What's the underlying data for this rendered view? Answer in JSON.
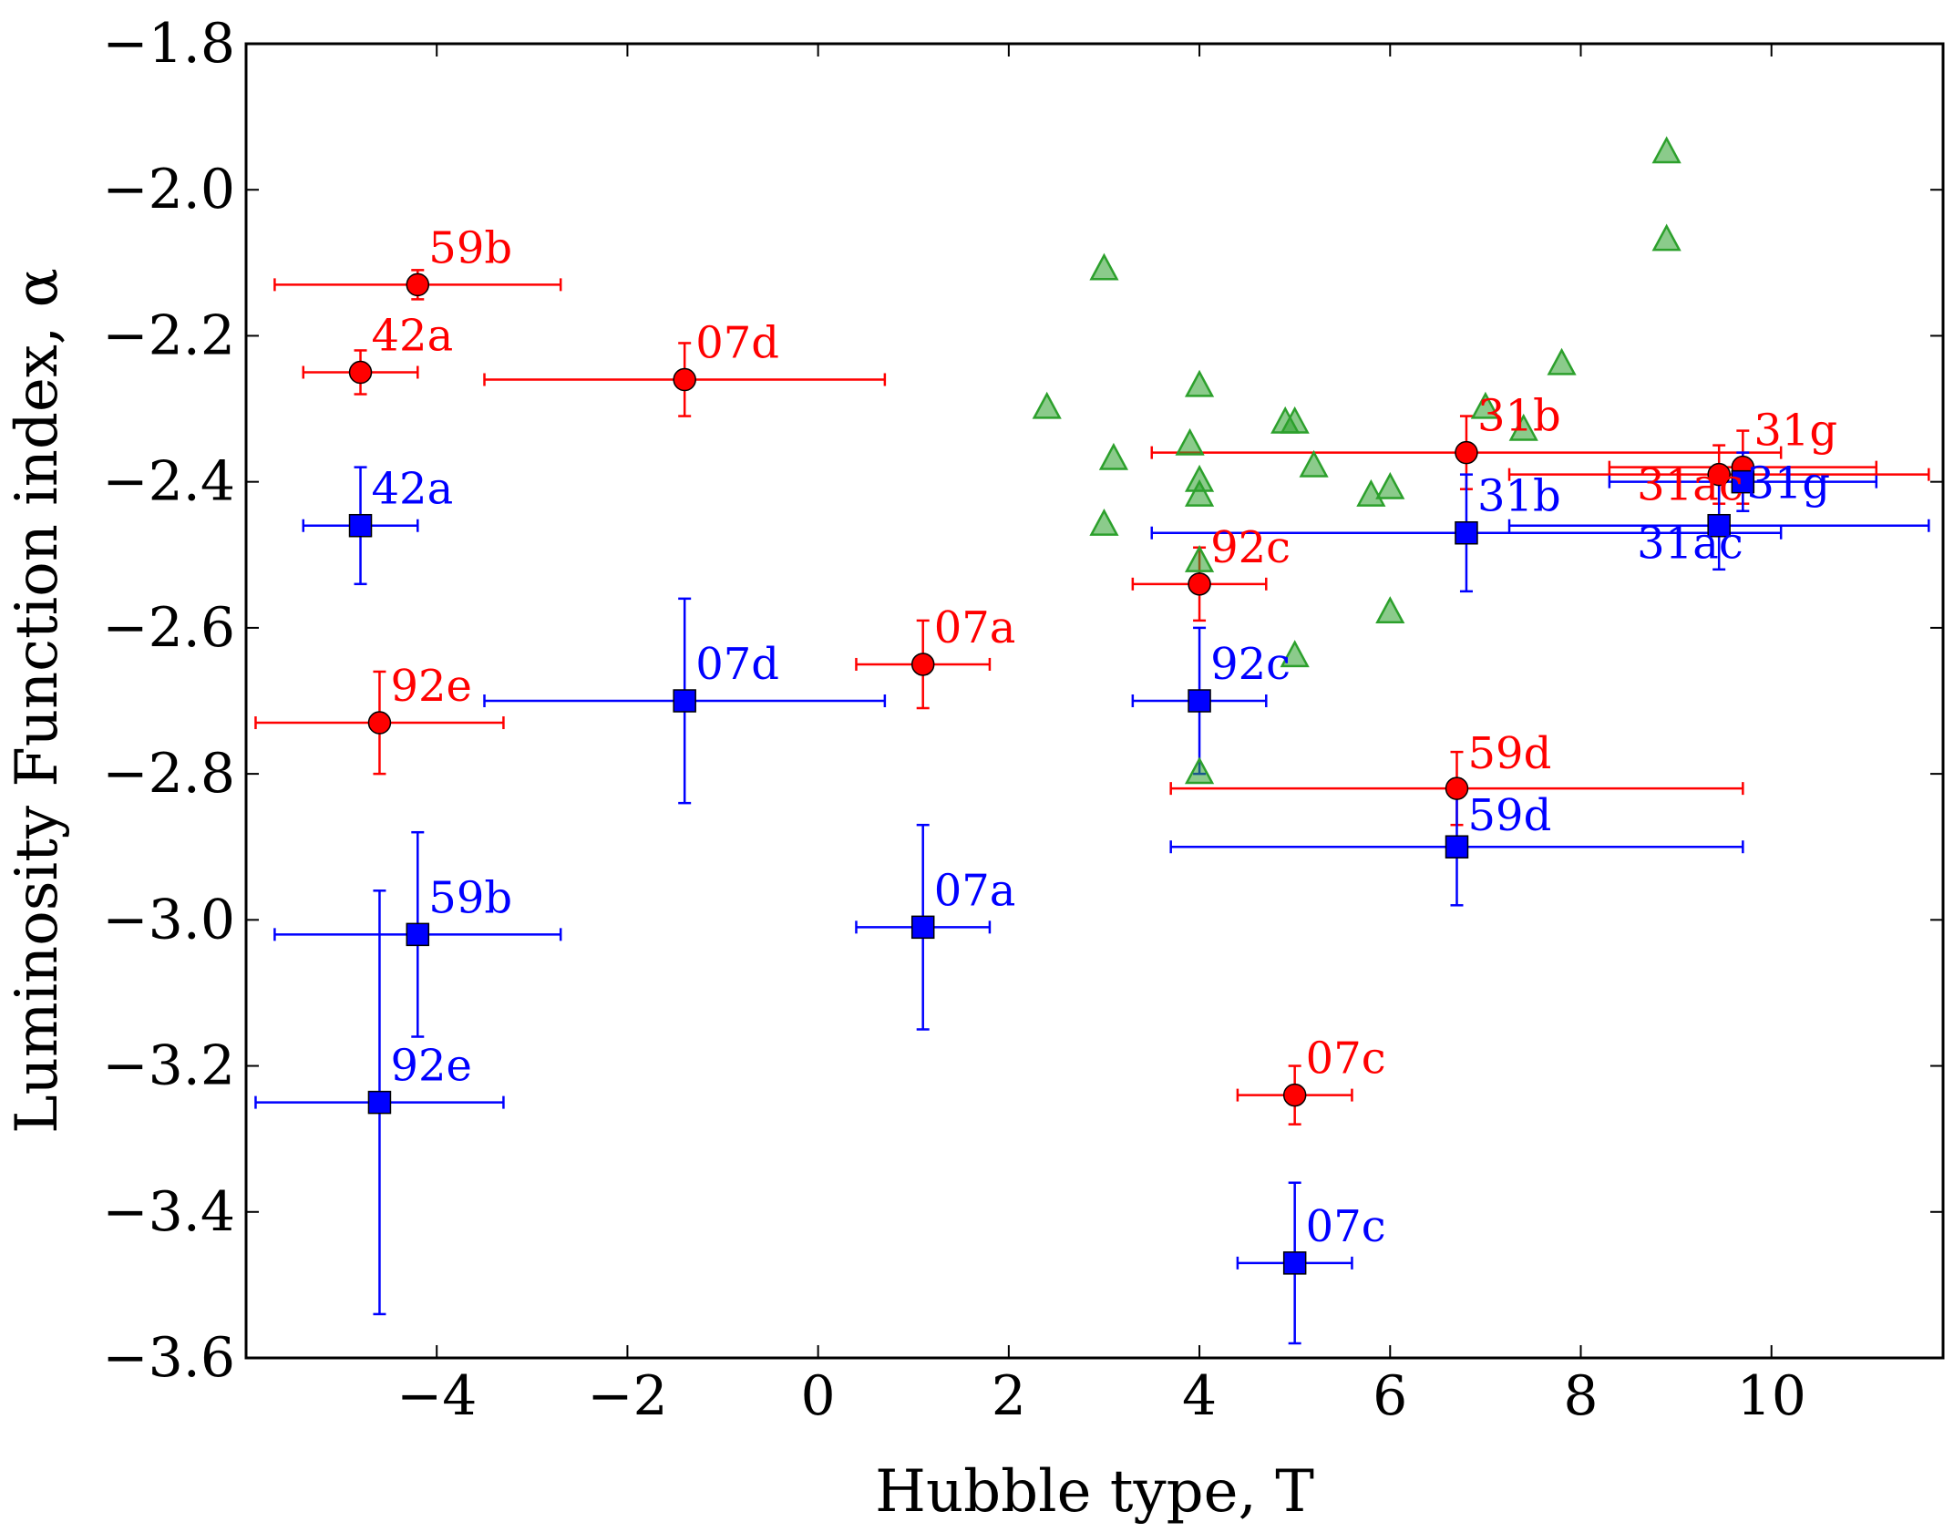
{
  "chart_data": {
    "type": "scatter",
    "title": "",
    "xlabel": "Hubble type, T",
    "ylabel": "Luminosity Function index, α",
    "xlim": [
      -6,
      11.8
    ],
    "ylim": [
      -3.6,
      -1.8
    ],
    "xticks": [
      -4,
      -2,
      0,
      2,
      4,
      6,
      8,
      10
    ],
    "yticks": [
      -1.8,
      -2.0,
      -2.2,
      -2.4,
      -2.6,
      -2.8,
      -3.0,
      -3.2,
      -3.4,
      -3.6
    ],
    "xtick_labels": [
      "−4",
      "−2",
      "0",
      "2",
      "4",
      "6",
      "8",
      "10"
    ],
    "ytick_labels": [
      "−1.8",
      "−2.0",
      "−2.2",
      "−2.4",
      "−2.6",
      "−2.8",
      "−3.0",
      "−3.2",
      "−3.4",
      "−3.6"
    ],
    "colors": {
      "red": "#ff0000",
      "blue": "#0000ff",
      "green": "#2ca02c"
    },
    "series": [
      {
        "name": "red-circles",
        "marker": "circle",
        "color": "#ff0000",
        "points": [
          {
            "label": "59b",
            "x": -4.2,
            "y": -2.13,
            "xerr": [
              1.5,
              1.5
            ],
            "yerr": [
              0.02,
              0.02
            ]
          },
          {
            "label": "42a",
            "x": -4.8,
            "y": -2.25,
            "xerr": [
              0.6,
              0.6
            ],
            "yerr": [
              0.03,
              0.03
            ]
          },
          {
            "label": "07d",
            "x": -1.4,
            "y": -2.26,
            "xerr": [
              2.1,
              2.1
            ],
            "yerr": [
              0.05,
              0.05
            ]
          },
          {
            "label": "92e",
            "x": -4.6,
            "y": -2.73,
            "xerr": [
              1.3,
              1.3
            ],
            "yerr": [
              0.07,
              0.07
            ]
          },
          {
            "label": "07a",
            "x": 1.1,
            "y": -2.65,
            "xerr": [
              0.7,
              0.7
            ],
            "yerr": [
              0.06,
              0.06
            ]
          },
          {
            "label": "92c",
            "x": 4.0,
            "y": -2.54,
            "xerr": [
              0.7,
              0.7
            ],
            "yerr": [
              0.05,
              0.05
            ]
          },
          {
            "label": "31b",
            "x": 6.8,
            "y": -2.36,
            "xerr": [
              3.3,
              3.3
            ],
            "yerr": [
              0.05,
              0.05
            ]
          },
          {
            "label": "31ac",
            "x": 9.45,
            "y": -2.39,
            "xerr": [
              2.2,
              2.2
            ],
            "yerr": [
              0.04,
              0.04
            ]
          },
          {
            "label": "31g",
            "x": 9.7,
            "y": -2.38,
            "xerr": [
              1.4,
              1.4
            ],
            "yerr": [
              0.05,
              0.05
            ]
          },
          {
            "label": "59d",
            "x": 6.7,
            "y": -2.82,
            "xerr": [
              3.0,
              3.0
            ],
            "yerr": [
              0.05,
              0.05
            ]
          },
          {
            "label": "07c",
            "x": 5.0,
            "y": -3.24,
            "xerr": [
              0.6,
              0.6
            ],
            "yerr": [
              0.04,
              0.04
            ]
          }
        ]
      },
      {
        "name": "blue-squares",
        "marker": "square",
        "color": "#0000ff",
        "points": [
          {
            "label": "42a",
            "x": -4.8,
            "y": -2.46,
            "xerr": [
              0.6,
              0.6
            ],
            "yerr": [
              0.08,
              0.08
            ]
          },
          {
            "label": "07d",
            "x": -1.4,
            "y": -2.7,
            "xerr": [
              2.1,
              2.1
            ],
            "yerr": [
              0.14,
              0.14
            ]
          },
          {
            "label": "59b",
            "x": -4.2,
            "y": -3.02,
            "xerr": [
              1.5,
              1.5
            ],
            "yerr": [
              0.14,
              0.14
            ]
          },
          {
            "label": "92e",
            "x": -4.6,
            "y": -3.25,
            "xerr": [
              1.3,
              1.3
            ],
            "yerr": [
              0.29,
              0.29
            ]
          },
          {
            "label": "07a",
            "x": 1.1,
            "y": -3.01,
            "xerr": [
              0.7,
              0.7
            ],
            "yerr": [
              0.14,
              0.14
            ]
          },
          {
            "label": "92c",
            "x": 4.0,
            "y": -2.7,
            "xerr": [
              0.7,
              0.7
            ],
            "yerr": [
              0.1,
              0.1
            ]
          },
          {
            "label": "31b",
            "x": 6.8,
            "y": -2.47,
            "xerr": [
              3.3,
              3.3
            ],
            "yerr": [
              0.08,
              0.08
            ]
          },
          {
            "label": "31ac",
            "x": 9.45,
            "y": -2.46,
            "xerr": [
              2.2,
              2.2
            ],
            "yerr": [
              0.06,
              0.06
            ]
          },
          {
            "label": "31g",
            "x": 9.7,
            "y": -2.4,
            "xerr": [
              1.4,
              1.4
            ],
            "yerr": [
              0.04,
              0.04
            ]
          },
          {
            "label": "59d",
            "x": 6.7,
            "y": -2.9,
            "xerr": [
              3.0,
              3.0
            ],
            "yerr": [
              0.08,
              0.08
            ]
          },
          {
            "label": "07c",
            "x": 5.0,
            "y": -3.47,
            "xerr": [
              0.6,
              0.6
            ],
            "yerr": [
              0.11,
              0.11
            ]
          }
        ]
      },
      {
        "name": "green-triangles",
        "marker": "triangle",
        "color": "#2ca02c",
        "points": [
          {
            "x": 2.4,
            "y": -2.3
          },
          {
            "x": 3.0,
            "y": -2.11
          },
          {
            "x": 3.1,
            "y": -2.37
          },
          {
            "x": 3.0,
            "y": -2.46
          },
          {
            "x": 3.9,
            "y": -2.35
          },
          {
            "x": 4.0,
            "y": -2.27
          },
          {
            "x": 4.0,
            "y": -2.4
          },
          {
            "x": 4.0,
            "y": -2.42
          },
          {
            "x": 4.0,
            "y": -2.51
          },
          {
            "x": 4.0,
            "y": -2.8
          },
          {
            "x": 4.9,
            "y": -2.32
          },
          {
            "x": 5.0,
            "y": -2.32
          },
          {
            "x": 5.2,
            "y": -2.38
          },
          {
            "x": 5.0,
            "y": -2.64
          },
          {
            "x": 5.8,
            "y": -2.42
          },
          {
            "x": 6.0,
            "y": -2.41
          },
          {
            "x": 6.0,
            "y": -2.58
          },
          {
            "x": 7.0,
            "y": -2.3
          },
          {
            "x": 7.4,
            "y": -2.33
          },
          {
            "x": 7.8,
            "y": -2.24
          },
          {
            "x": 8.9,
            "y": -1.95
          },
          {
            "x": 8.9,
            "y": -2.07
          }
        ]
      }
    ]
  }
}
